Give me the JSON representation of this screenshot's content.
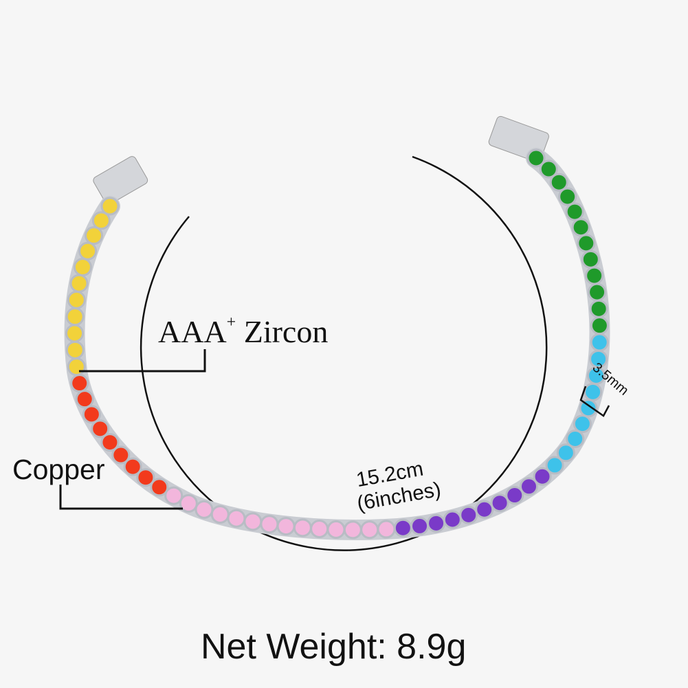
{
  "labels": {
    "zircon_main": "AAA",
    "zircon_sup": "+",
    "zircon_rest": " Zircon",
    "copper": "Copper",
    "length_cm": "15.2cm",
    "length_in": "(6inches)",
    "width": "3.5mm",
    "net_weight": "Net Weight: 8.9g"
  },
  "stone_colors": {
    "yellow": "#f2d23a",
    "red": "#f23a1c",
    "pink": "#f2b6dc",
    "purple": "#7a3ac8",
    "cyan": "#3ec2ea",
    "green": "#1f9a2a"
  },
  "metal_color": "#c9ccd2",
  "stone_sequence": [
    "yellow",
    "red",
    "pink",
    "purple",
    "cyan",
    "green"
  ]
}
